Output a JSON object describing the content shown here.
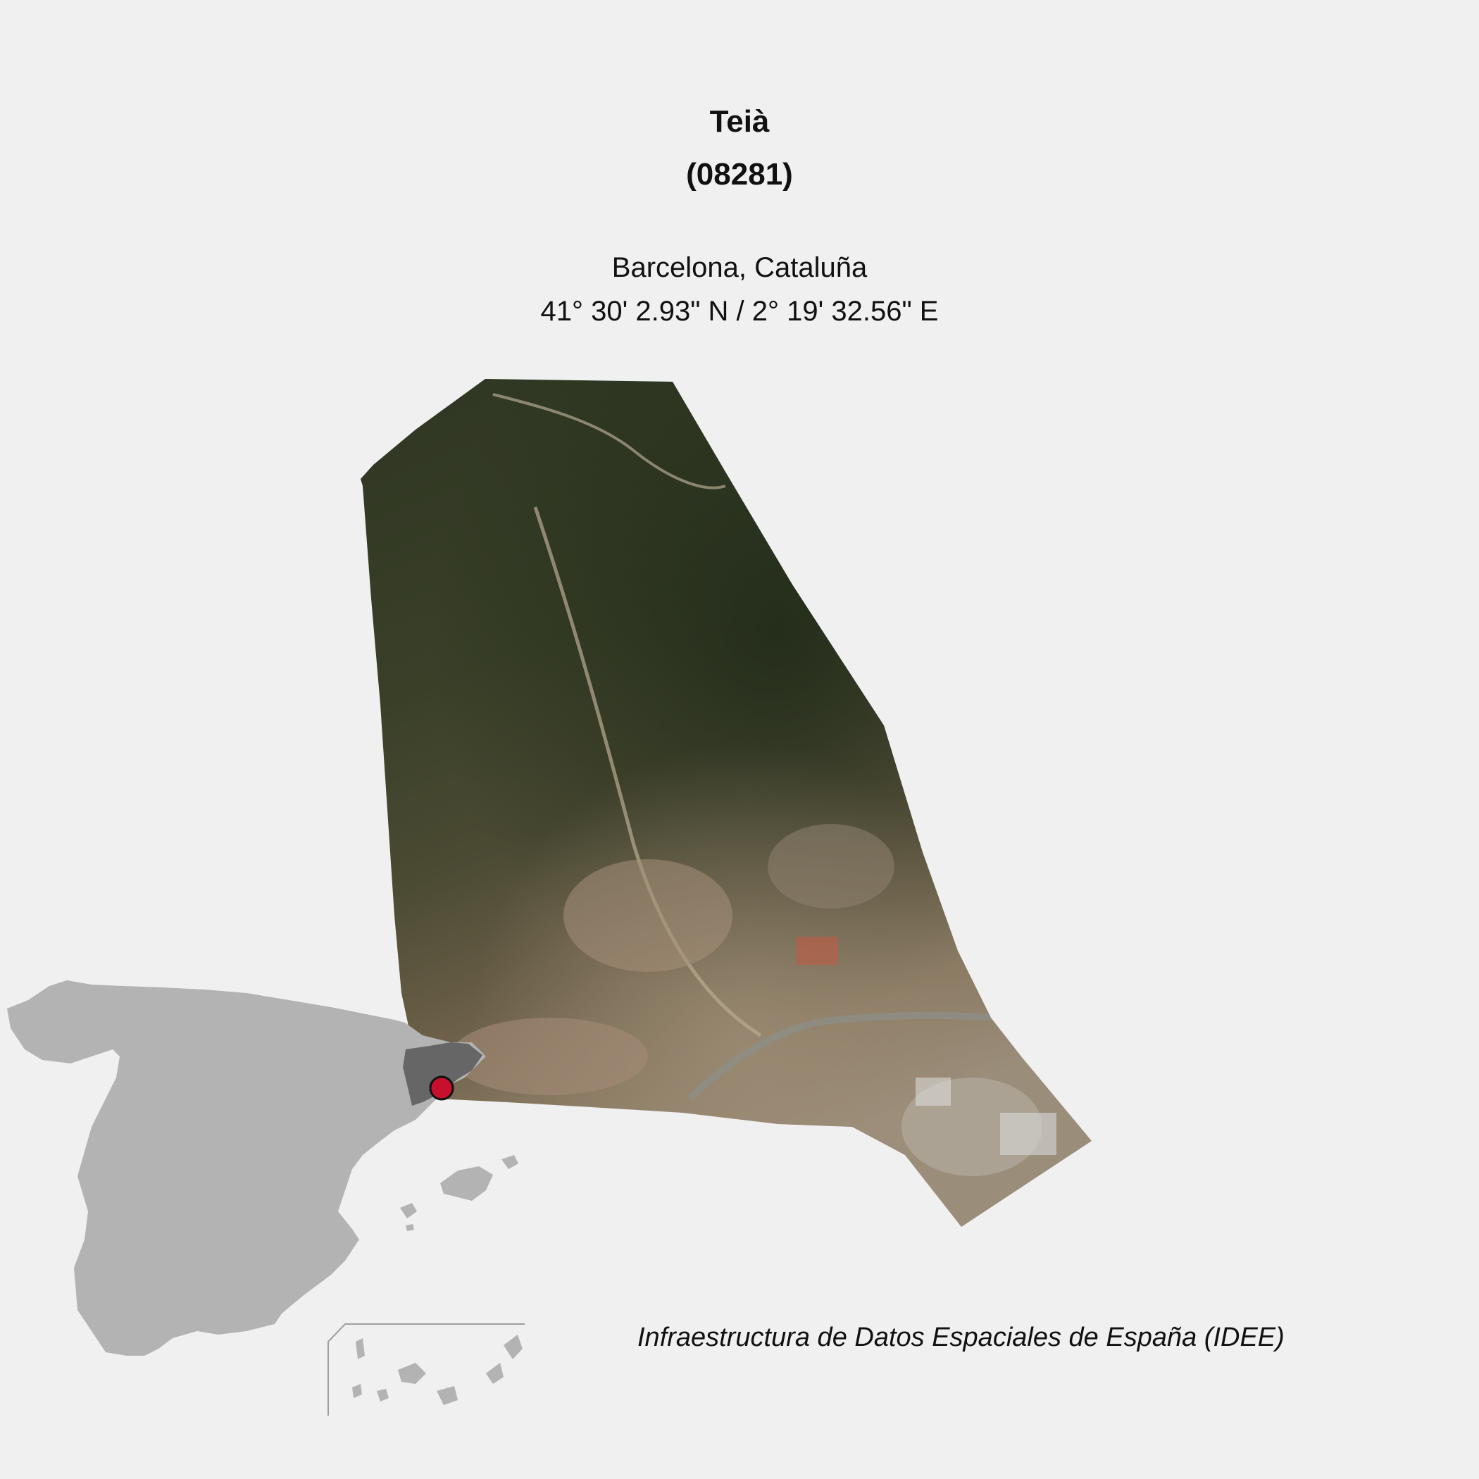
{
  "header": {
    "name": "Teià",
    "code": "(08281)",
    "region": "Barcelona, Cataluña",
    "coordinates": "41° 30' 2.93\" N / 2° 19' 32.56\" E"
  },
  "map": {
    "layer": "orthophoto",
    "locator_fill": "#b3b3b3",
    "province_fill": "#666666",
    "marker_color": "#c8102e",
    "inset_border_color": "#9e9e9e"
  },
  "footer": {
    "source": "Infraestructura de Datos Espaciales de España (IDEE)"
  }
}
